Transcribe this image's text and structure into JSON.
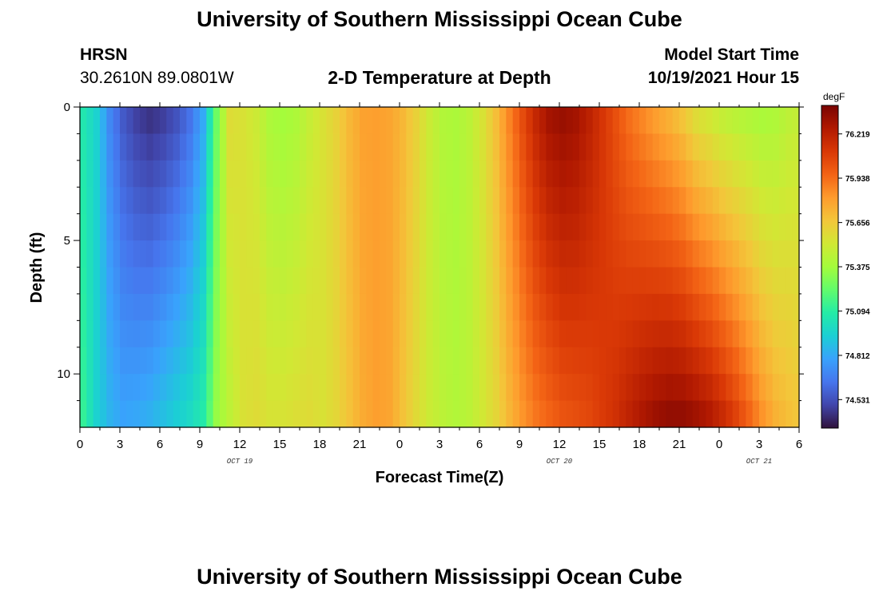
{
  "header": {
    "title": "University of Southern Mississippi Ocean Cube",
    "station": "HRSN",
    "coords": "30.2610N  89.0801W",
    "plot_title": "2-D Temperature at Depth",
    "start_label": "Model Start Time",
    "start_value": "10/19/2021 Hour 15"
  },
  "footer": {
    "title": "University of Southern Mississippi Ocean Cube"
  },
  "chart_data": {
    "type": "heatmap",
    "title": "2-D Temperature at Depth",
    "xlabel": "Forecast Time(Z)",
    "ylabel": "Depth (ft)",
    "x_unit": "forecast hour",
    "x_range": [
      0,
      54
    ],
    "y_range": [
      0,
      12
    ],
    "x_tick_labels": [
      "0",
      "3",
      "6",
      "9",
      "12",
      "15",
      "18",
      "21",
      "0",
      "3",
      "6",
      "9",
      "12",
      "15",
      "18",
      "21",
      "0",
      "3",
      "6"
    ],
    "date_labels": [
      {
        "text": "OCT 19",
        "hour": 12
      },
      {
        "text": "OCT 20",
        "hour": 36
      },
      {
        "text": "OCT 21",
        "hour": 51
      }
    ],
    "y_tick_labels": [
      {
        "value": 0,
        "label": "0"
      },
      {
        "value": 5,
        "label": "5"
      },
      {
        "value": 10,
        "label": "10"
      }
    ],
    "depth_levels_ft": [
      0.5,
      1.5,
      2.5,
      3.5,
      4.5,
      5.5,
      6.5,
      7.5,
      8.5,
      9.5,
      10.5,
      11.5
    ],
    "colorbar": {
      "unit": "degF",
      "min": 74.35,
      "max": 76.4,
      "labels": [
        "76.219",
        "75.938",
        "75.656",
        "75.375",
        "75.094",
        "74.812",
        "74.531"
      ],
      "colors": [
        "#30123b",
        "#4145ab",
        "#4675ed",
        "#39a2fc",
        "#1bcfd4",
        "#24eca6",
        "#61fc6c",
        "#a4fc3b",
        "#d1e834",
        "#f3c63a",
        "#fe9b2d",
        "#f36315",
        "#d93806",
        "#b11901",
        "#7a0402"
      ]
    },
    "profiles": [
      {
        "hour": 0,
        "surface": 75.05,
        "bottom": 75.12
      },
      {
        "hour": 1,
        "surface": 74.95,
        "bottom": 74.95
      },
      {
        "hour": 2,
        "surface": 74.7,
        "bottom": 74.85
      },
      {
        "hour": 3,
        "surface": 74.55,
        "bottom": 74.8
      },
      {
        "hour": 4,
        "surface": 74.47,
        "bottom": 74.82
      },
      {
        "hour": 5,
        "surface": 74.43,
        "bottom": 74.85
      },
      {
        "hour": 6,
        "surface": 74.46,
        "bottom": 74.9
      },
      {
        "hour": 7,
        "surface": 74.52,
        "bottom": 74.95
      },
      {
        "hour": 8,
        "surface": 74.62,
        "bottom": 75.0
      },
      {
        "hour": 9,
        "surface": 74.8,
        "bottom": 75.08
      },
      {
        "hour": 10,
        "surface": 75.25,
        "bottom": 75.35
      },
      {
        "hour": 11,
        "surface": 75.58,
        "bottom": 75.45
      },
      {
        "hour": 12,
        "surface": 75.55,
        "bottom": 75.55
      },
      {
        "hour": 13,
        "surface": 75.5,
        "bottom": 75.58
      },
      {
        "hour": 14,
        "surface": 75.4,
        "bottom": 75.55
      },
      {
        "hour": 15,
        "surface": 75.37,
        "bottom": 75.55
      },
      {
        "hour": 16,
        "surface": 75.4,
        "bottom": 75.57
      },
      {
        "hour": 17,
        "surface": 75.48,
        "bottom": 75.58
      },
      {
        "hour": 18,
        "surface": 75.55,
        "bottom": 75.55
      },
      {
        "hour": 19,
        "surface": 75.62,
        "bottom": 75.6
      },
      {
        "hour": 20,
        "surface": 75.72,
        "bottom": 75.68
      },
      {
        "hour": 21,
        "surface": 75.79,
        "bottom": 75.76
      },
      {
        "hour": 22,
        "surface": 75.8,
        "bottom": 75.8
      },
      {
        "hour": 23,
        "surface": 75.78,
        "bottom": 75.78
      },
      {
        "hour": 24,
        "surface": 75.72,
        "bottom": 75.68
      },
      {
        "hour": 25,
        "surface": 75.62,
        "bottom": 75.58
      },
      {
        "hour": 26,
        "surface": 75.5,
        "bottom": 75.5
      },
      {
        "hour": 27,
        "surface": 75.42,
        "bottom": 75.45
      },
      {
        "hour": 28,
        "surface": 75.4,
        "bottom": 75.42
      },
      {
        "hour": 29,
        "surface": 75.45,
        "bottom": 75.45
      },
      {
        "hour": 30,
        "surface": 75.55,
        "bottom": 75.52
      },
      {
        "hour": 31,
        "surface": 75.7,
        "bottom": 75.6
      },
      {
        "hour": 32,
        "surface": 75.88,
        "bottom": 75.72
      },
      {
        "hour": 33,
        "surface": 76.05,
        "bottom": 75.82
      },
      {
        "hour": 34,
        "surface": 76.2,
        "bottom": 75.9
      },
      {
        "hour": 35,
        "surface": 76.3,
        "bottom": 75.95
      },
      {
        "hour": 36,
        "surface": 76.33,
        "bottom": 76.0
      },
      {
        "hour": 37,
        "surface": 76.3,
        "bottom": 76.02
      },
      {
        "hour": 38,
        "surface": 76.22,
        "bottom": 76.05
      },
      {
        "hour": 39,
        "surface": 76.12,
        "bottom": 76.1
      },
      {
        "hour": 40,
        "surface": 76.02,
        "bottom": 76.15
      },
      {
        "hour": 41,
        "surface": 75.92,
        "bottom": 76.22
      },
      {
        "hour": 42,
        "surface": 75.85,
        "bottom": 76.28
      },
      {
        "hour": 43,
        "surface": 75.78,
        "bottom": 76.33
      },
      {
        "hour": 44,
        "surface": 75.72,
        "bottom": 76.36
      },
      {
        "hour": 45,
        "surface": 75.65,
        "bottom": 76.36
      },
      {
        "hour": 46,
        "surface": 75.55,
        "bottom": 76.33
      },
      {
        "hour": 47,
        "surface": 75.5,
        "bottom": 76.28
      },
      {
        "hour": 48,
        "surface": 75.45,
        "bottom": 76.2
      },
      {
        "hour": 49,
        "surface": 75.42,
        "bottom": 76.1
      },
      {
        "hour": 50,
        "surface": 75.4,
        "bottom": 75.98
      },
      {
        "hour": 51,
        "surface": 75.38,
        "bottom": 75.85
      },
      {
        "hour": 52,
        "surface": 75.4,
        "bottom": 75.75
      },
      {
        "hour": 53,
        "surface": 75.45,
        "bottom": 75.7
      },
      {
        "hour": 54,
        "surface": 75.48,
        "bottom": 75.66
      }
    ]
  }
}
